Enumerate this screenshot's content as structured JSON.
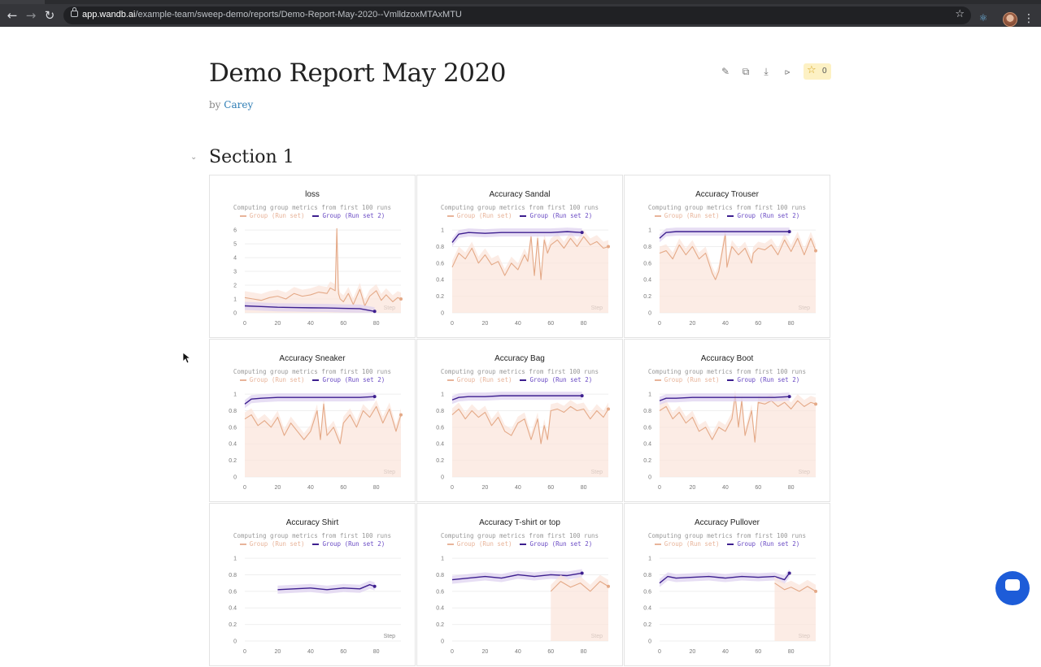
{
  "browser": {
    "url_host": "app.wandb.ai",
    "url_path": "/example-team/sweep-demo/reports/Demo-Report-May-2020--VmlldzoxMTAxMTU",
    "icons": {
      "back": "arrow-left-icon",
      "forward": "arrow-right-icon",
      "reload": "reload-icon",
      "star": "bookmark-star-icon",
      "menu": "kebab-menu-icon"
    }
  },
  "report": {
    "title": "Demo Report May 2020",
    "by_prefix": "by",
    "author": "Carey",
    "star_count": "0",
    "actions": [
      "edit-icon",
      "clone-icon",
      "download-icon",
      "share-icon",
      "star-icon"
    ]
  },
  "section": {
    "title": "Section 1"
  },
  "panel_common": {
    "note": "Computing group metrics from first 100 runs",
    "legend1": "Group (Run set)",
    "legend2": "Group (Run set 2)",
    "step_label": "Step",
    "colors": {
      "series1": "#e4a987",
      "series2": "#3d1f8f",
      "band1": "#fbe4da",
      "band2": "#ddd0f0"
    }
  },
  "panels": [
    {
      "title": "loss"
    },
    {
      "title": "Accuracy Sandal"
    },
    {
      "title": "Accuracy Trouser"
    },
    {
      "title": "Accuracy Sneaker"
    },
    {
      "title": "Accuracy Bag"
    },
    {
      "title": "Accuracy Boot"
    },
    {
      "title": "Accuracy Shirt"
    },
    {
      "title": "Accuracy T-shirt or top"
    },
    {
      "title": "Accuracy Pullover"
    }
  ],
  "chart_data": [
    {
      "type": "line",
      "title": "loss",
      "xlabel": "Step",
      "xticks": [
        0,
        20,
        40,
        60,
        80
      ],
      "xlim": [
        0,
        95
      ],
      "yticks": [
        0,
        1,
        2,
        3,
        4,
        5,
        6
      ],
      "ylim": [
        0,
        6.3
      ],
      "series": [
        {
          "name": "Group (Run set)",
          "x": [
            0,
            5,
            10,
            15,
            20,
            25,
            30,
            35,
            40,
            45,
            50,
            52,
            55,
            56,
            57,
            58,
            60,
            63,
            66,
            70,
            73,
            76,
            80,
            83,
            86,
            90,
            93,
            95
          ],
          "y": [
            1.1,
            1.0,
            0.9,
            1.1,
            1.2,
            1.0,
            1.4,
            1.2,
            1.3,
            1.5,
            1.4,
            1.8,
            1.6,
            6.1,
            1.4,
            1.0,
            0.8,
            1.4,
            0.6,
            1.7,
            0.5,
            1.2,
            1.6,
            0.9,
            1.3,
            0.8,
            1.1,
            1.0
          ]
        },
        {
          "name": "Group (Run set 2)",
          "x": [
            0,
            10,
            20,
            30,
            40,
            50,
            60,
            70,
            79
          ],
          "y": [
            0.5,
            0.45,
            0.4,
            0.38,
            0.36,
            0.35,
            0.32,
            0.3,
            0.1
          ]
        }
      ]
    },
    {
      "type": "line",
      "title": "Accuracy Sandal",
      "xlabel": "Step",
      "xticks": [
        0,
        20,
        40,
        60,
        80
      ],
      "xlim": [
        0,
        95
      ],
      "yticks": [
        0,
        0.2,
        0.4,
        0.6,
        0.8,
        1
      ],
      "ylim": [
        0,
        1.05
      ],
      "series": [
        {
          "name": "Group (Run set)",
          "x": [
            0,
            4,
            8,
            12,
            16,
            20,
            24,
            28,
            32,
            36,
            40,
            44,
            46,
            48,
            50,
            52,
            54,
            56,
            58,
            60,
            64,
            68,
            72,
            76,
            80,
            84,
            88,
            92,
            95
          ],
          "y": [
            0.55,
            0.72,
            0.65,
            0.78,
            0.6,
            0.7,
            0.58,
            0.62,
            0.45,
            0.6,
            0.52,
            0.7,
            0.62,
            0.92,
            0.45,
            0.9,
            0.4,
            0.88,
            0.72,
            0.82,
            0.88,
            0.78,
            0.9,
            0.8,
            0.92,
            0.82,
            0.86,
            0.78,
            0.8
          ]
        },
        {
          "name": "Group (Run set 2)",
          "x": [
            0,
            4,
            10,
            20,
            30,
            40,
            50,
            60,
            70,
            79
          ],
          "y": [
            0.85,
            0.95,
            0.97,
            0.96,
            0.97,
            0.97,
            0.97,
            0.97,
            0.98,
            0.97
          ]
        }
      ]
    },
    {
      "type": "line",
      "title": "Accuracy Trouser",
      "xlabel": "Step",
      "xticks": [
        0,
        20,
        40,
        60,
        80
      ],
      "xlim": [
        0,
        95
      ],
      "yticks": [
        0,
        0.2,
        0.4,
        0.6,
        0.8,
        1
      ],
      "ylim": [
        0,
        1.05
      ],
      "series": [
        {
          "name": "Group (Run set)",
          "x": [
            0,
            4,
            8,
            12,
            16,
            20,
            24,
            28,
            32,
            34,
            36,
            40,
            41,
            44,
            48,
            52,
            56,
            57,
            60,
            64,
            68,
            72,
            76,
            80,
            84,
            88,
            92,
            95
          ],
          "y": [
            0.72,
            0.75,
            0.65,
            0.82,
            0.7,
            0.8,
            0.65,
            0.72,
            0.48,
            0.4,
            0.5,
            0.95,
            0.55,
            0.8,
            0.7,
            0.78,
            0.6,
            0.72,
            0.78,
            0.76,
            0.82,
            0.7,
            0.88,
            0.74,
            0.9,
            0.7,
            0.9,
            0.75
          ]
        },
        {
          "name": "Group (Run set 2)",
          "x": [
            0,
            4,
            10,
            20,
            30,
            40,
            50,
            60,
            70,
            79
          ],
          "y": [
            0.9,
            0.97,
            0.98,
            0.98,
            0.98,
            0.98,
            0.98,
            0.98,
            0.98,
            0.98
          ]
        }
      ]
    },
    {
      "type": "line",
      "title": "Accuracy Sneaker",
      "xlabel": "Step",
      "xticks": [
        0,
        20,
        40,
        60,
        80
      ],
      "xlim": [
        0,
        95
      ],
      "yticks": [
        0,
        0.2,
        0.4,
        0.6,
        0.8,
        1
      ],
      "ylim": [
        0,
        1.05
      ],
      "series": [
        {
          "name": "Group (Run set)",
          "x": [
            0,
            4,
            8,
            12,
            16,
            20,
            24,
            28,
            32,
            36,
            40,
            44,
            46,
            48,
            50,
            54,
            58,
            60,
            64,
            68,
            72,
            76,
            80,
            84,
            88,
            92,
            95
          ],
          "y": [
            0.7,
            0.75,
            0.62,
            0.68,
            0.6,
            0.72,
            0.5,
            0.65,
            0.55,
            0.45,
            0.55,
            0.8,
            0.45,
            0.88,
            0.5,
            0.6,
            0.4,
            0.65,
            0.75,
            0.6,
            0.8,
            0.72,
            0.85,
            0.65,
            0.82,
            0.55,
            0.75
          ]
        },
        {
          "name": "Group (Run set 2)",
          "x": [
            0,
            4,
            10,
            20,
            30,
            40,
            50,
            60,
            70,
            79
          ],
          "y": [
            0.88,
            0.94,
            0.95,
            0.96,
            0.96,
            0.96,
            0.96,
            0.96,
            0.96,
            0.97
          ]
        }
      ]
    },
    {
      "type": "line",
      "title": "Accuracy Bag",
      "xlabel": "Step",
      "xticks": [
        0,
        20,
        40,
        60,
        80
      ],
      "xlim": [
        0,
        95
      ],
      "yticks": [
        0,
        0.2,
        0.4,
        0.6,
        0.8,
        1
      ],
      "ylim": [
        0,
        1.05
      ],
      "series": [
        {
          "name": "Group (Run set)",
          "x": [
            0,
            4,
            8,
            12,
            16,
            20,
            24,
            28,
            32,
            36,
            40,
            44,
            48,
            52,
            54,
            56,
            58,
            60,
            64,
            68,
            72,
            76,
            80,
            84,
            88,
            92,
            95
          ],
          "y": [
            0.75,
            0.82,
            0.7,
            0.8,
            0.72,
            0.78,
            0.62,
            0.72,
            0.55,
            0.5,
            0.65,
            0.7,
            0.45,
            0.7,
            0.4,
            0.62,
            0.45,
            0.8,
            0.82,
            0.78,
            0.85,
            0.8,
            0.82,
            0.7,
            0.8,
            0.72,
            0.82
          ]
        },
        {
          "name": "Group (Run set 2)",
          "x": [
            0,
            4,
            10,
            20,
            30,
            40,
            50,
            60,
            70,
            79
          ],
          "y": [
            0.93,
            0.96,
            0.97,
            0.97,
            0.98,
            0.98,
            0.98,
            0.98,
            0.98,
            0.98
          ]
        }
      ]
    },
    {
      "type": "line",
      "title": "Accuracy Boot",
      "xlabel": "Step",
      "xticks": [
        0,
        20,
        40,
        60,
        80
      ],
      "xlim": [
        0,
        95
      ],
      "yticks": [
        0,
        0.2,
        0.4,
        0.6,
        0.8,
        1
      ],
      "ylim": [
        0,
        1.05
      ],
      "series": [
        {
          "name": "Group (Run set)",
          "x": [
            0,
            4,
            8,
            12,
            16,
            20,
            24,
            28,
            32,
            36,
            40,
            44,
            46,
            48,
            50,
            52,
            56,
            58,
            60,
            64,
            68,
            72,
            76,
            80,
            84,
            88,
            92,
            95
          ],
          "y": [
            0.8,
            0.85,
            0.7,
            0.78,
            0.65,
            0.72,
            0.55,
            0.6,
            0.45,
            0.6,
            0.55,
            0.7,
            0.98,
            0.6,
            0.92,
            0.5,
            0.8,
            0.42,
            0.9,
            0.88,
            0.92,
            0.85,
            0.9,
            0.82,
            0.92,
            0.85,
            0.9,
            0.88
          ]
        },
        {
          "name": "Group (Run set 2)",
          "x": [
            0,
            4,
            10,
            20,
            30,
            40,
            50,
            60,
            70,
            79
          ],
          "y": [
            0.92,
            0.95,
            0.95,
            0.96,
            0.96,
            0.96,
            0.96,
            0.96,
            0.96,
            0.97
          ]
        }
      ]
    },
    {
      "type": "line",
      "title": "Accuracy Shirt",
      "xlabel": "Step",
      "xticks": [
        0,
        20,
        40,
        60,
        80
      ],
      "xlim": [
        0,
        95
      ],
      "yticks": [
        0,
        0.2,
        0.4,
        0.6,
        0.8,
        1
      ],
      "ylim": [
        0,
        1.05
      ],
      "series": [
        {
          "name": "Group (Run set 2)",
          "x": [
            20,
            30,
            40,
            50,
            60,
            70,
            76,
            79
          ],
          "y": [
            0.62,
            0.63,
            0.64,
            0.62,
            0.64,
            0.63,
            0.68,
            0.66
          ]
        }
      ]
    },
    {
      "type": "line",
      "title": "Accuracy T-shirt or top",
      "xlabel": "Step",
      "xticks": [
        0,
        20,
        40,
        60,
        80
      ],
      "xlim": [
        0,
        95
      ],
      "yticks": [
        0,
        0.2,
        0.4,
        0.6,
        0.8,
        1
      ],
      "ylim": [
        0,
        1.05
      ],
      "series": [
        {
          "name": "Group (Run set 2)",
          "x": [
            0,
            10,
            20,
            30,
            40,
            50,
            60,
            70,
            79
          ],
          "y": [
            0.74,
            0.76,
            0.78,
            0.76,
            0.8,
            0.78,
            0.8,
            0.79,
            0.82
          ]
        },
        {
          "name": "Group (Run set)",
          "x": [
            60,
            66,
            72,
            78,
            84,
            90,
            95
          ],
          "y": [
            0.6,
            0.72,
            0.65,
            0.7,
            0.6,
            0.72,
            0.66
          ]
        }
      ]
    },
    {
      "type": "line",
      "title": "Accuracy Pullover",
      "xlabel": "Step",
      "xticks": [
        0,
        20,
        40,
        60,
        80
      ],
      "xlim": [
        0,
        95
      ],
      "yticks": [
        0,
        0.2,
        0.4,
        0.6,
        0.8,
        1
      ],
      "ylim": [
        0,
        1.05
      ],
      "series": [
        {
          "name": "Group (Run set 2)",
          "x": [
            0,
            5,
            10,
            20,
            30,
            40,
            50,
            60,
            70,
            76,
            79
          ],
          "y": [
            0.7,
            0.78,
            0.76,
            0.77,
            0.78,
            0.76,
            0.78,
            0.77,
            0.78,
            0.74,
            0.82
          ]
        },
        {
          "name": "Group (Run set)",
          "x": [
            70,
            76,
            80,
            85,
            90,
            95
          ],
          "y": [
            0.7,
            0.62,
            0.65,
            0.6,
            0.66,
            0.6
          ]
        }
      ]
    }
  ]
}
